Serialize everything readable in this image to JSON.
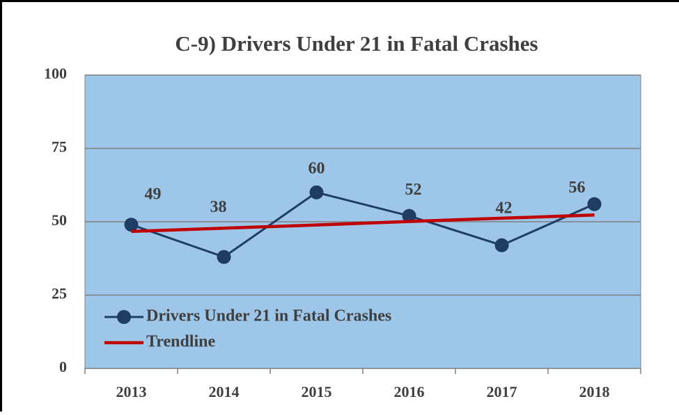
{
  "chart_data": {
    "type": "line",
    "title": "C-9) Drivers Under 21 in Fatal Crashes",
    "categories": [
      "2013",
      "2014",
      "2015",
      "2016",
      "2017",
      "2018"
    ],
    "series": [
      {
        "name": "Drivers Under 21 in Fatal Crashes",
        "color": "#1f3d63",
        "values": [
          49,
          38,
          60,
          52,
          42,
          56
        ],
        "markers": true,
        "data_labels": true
      },
      {
        "name": "Trendline",
        "color": "#c00000",
        "values": [
          46.7,
          47.8,
          48.9,
          50.1,
          51.2,
          52.3
        ],
        "markers": false,
        "data_labels": false
      }
    ],
    "ylim": [
      0,
      100
    ],
    "yticks": [
      0,
      25,
      50,
      75,
      100
    ],
    "grid": true,
    "legend": "lower left",
    "plot_background": "#9dc6e8"
  }
}
